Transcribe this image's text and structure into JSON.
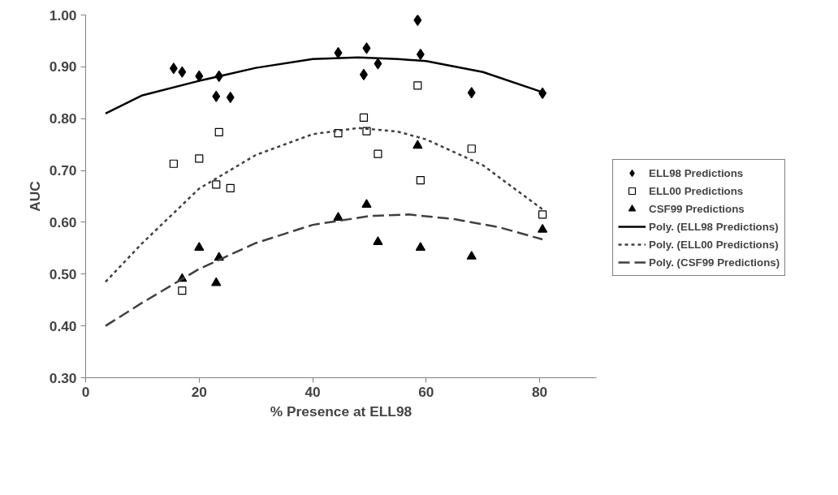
{
  "chart_data": {
    "type": "scatter",
    "xlabel": "% Presence at ELL98",
    "ylabel": "AUC",
    "xlim": [
      0,
      90
    ],
    "ylim": [
      0.3,
      1.0
    ],
    "xticks": [
      0,
      20,
      40,
      60,
      80
    ],
    "yticks": [
      {
        "value": 0.3,
        "label": "0.30"
      },
      {
        "value": 0.4,
        "label": "0.40"
      },
      {
        "value": 0.5,
        "label": "0.50"
      },
      {
        "value": 0.6,
        "label": "0.60"
      },
      {
        "value": 0.7,
        "label": "0.70"
      },
      {
        "value": 0.8,
        "label": "0.80"
      },
      {
        "value": 0.9,
        "label": "0.90"
      },
      {
        "value": 1.0,
        "label": "1.00"
      }
    ],
    "grid": false,
    "legend": "right",
    "series": [
      {
        "name": "ELL98 Predictions",
        "marker": "diamond",
        "color": "#000000",
        "x": [
          15.5,
          17,
          20,
          23.5,
          23,
          25.5,
          44.5,
          49,
          49.5,
          51.5,
          58.5,
          59,
          68,
          80.5
        ],
        "values": [
          0.897,
          0.89,
          0.882,
          0.882,
          0.843,
          0.841,
          0.927,
          0.885,
          0.936,
          0.906,
          0.99,
          0.924,
          0.85,
          0.849
        ]
      },
      {
        "name": "ELL00 Predictions",
        "marker": "square",
        "color": "#000000",
        "x": [
          15.5,
          20,
          23.5,
          23,
          25.5,
          17,
          44.5,
          49,
          49.5,
          51.5,
          58.5,
          59,
          68,
          80.5
        ],
        "values": [
          0.713,
          0.723,
          0.774,
          0.673,
          0.666,
          0.468,
          0.772,
          0.802,
          0.776,
          0.732,
          0.864,
          0.681,
          0.742,
          0.615
        ]
      },
      {
        "name": "CSF99 Predictions",
        "marker": "triangle",
        "color": "#000000",
        "x": [
          17,
          20,
          23.5,
          23,
          44.5,
          49.5,
          51.5,
          58.5,
          59,
          68,
          80.5
        ],
        "values": [
          0.491,
          0.551,
          0.532,
          0.483,
          0.609,
          0.634,
          0.562,
          0.748,
          0.551,
          0.534,
          0.586
        ]
      },
      {
        "name": "Poly. (ELL98 Predictions)",
        "type": "line",
        "line_style": "solid",
        "color": "#000000",
        "x": [
          3.5,
          10,
          20,
          30,
          40,
          48,
          55,
          60,
          70,
          80.5
        ],
        "values": [
          0.81,
          0.845,
          0.873,
          0.898,
          0.915,
          0.918,
          0.915,
          0.911,
          0.89,
          0.851
        ]
      },
      {
        "name": "Poly. (ELL00 Predictions)",
        "type": "line",
        "line_style": "dotted",
        "color": "#404040",
        "x": [
          3.5,
          10,
          20,
          30,
          40,
          48,
          55,
          60,
          70,
          80.5
        ],
        "values": [
          0.485,
          0.56,
          0.665,
          0.73,
          0.77,
          0.782,
          0.775,
          0.76,
          0.71,
          0.625
        ]
      },
      {
        "name": "Poly. (CSF99 Predictions)",
        "type": "line",
        "line_style": "dashed",
        "color": "#404040",
        "x": [
          3.5,
          10,
          20,
          30,
          40,
          50,
          57,
          65,
          73,
          80.5
        ],
        "values": [
          0.4,
          0.445,
          0.51,
          0.56,
          0.595,
          0.612,
          0.615,
          0.606,
          0.59,
          0.567
        ]
      }
    ]
  }
}
